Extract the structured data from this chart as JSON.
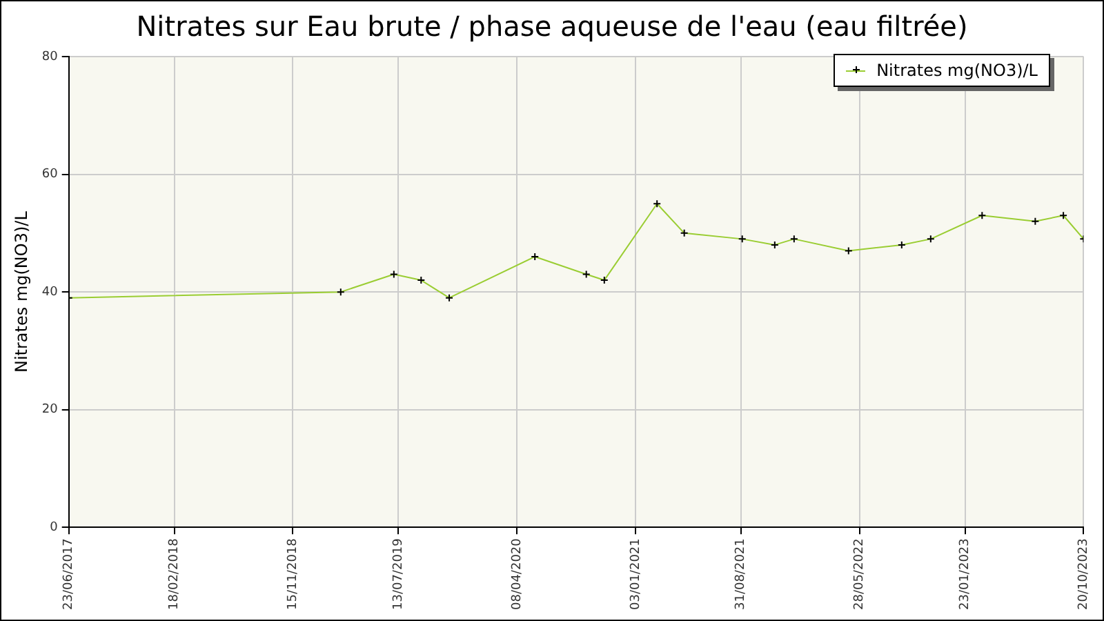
{
  "chart_data": {
    "type": "line",
    "title": "Nitrates sur Eau brute / phase aqueuse de l'eau (eau filtrée)",
    "ylabel": "Nitrates mg(NO3)/L",
    "x": [
      "2017-06-23",
      "2019-03-04",
      "2019-07-03",
      "2019-09-03",
      "2019-11-06",
      "2020-05-19",
      "2020-09-13",
      "2020-10-24",
      "2021-02-21",
      "2021-04-24",
      "2021-09-03",
      "2021-11-16",
      "2021-12-30",
      "2022-05-03",
      "2022-09-01",
      "2022-11-06",
      "2023-03-03",
      "2023-07-02",
      "2023-09-04",
      "2023-10-20"
    ],
    "series": [
      {
        "name": "Nitrates mg(NO3)/L",
        "color": "#9acd32",
        "values": [
          39,
          40,
          43,
          42,
          39,
          46,
          43,
          42,
          55,
          50,
          49,
          48,
          49,
          47,
          48,
          49,
          53,
          52,
          53,
          49
        ]
      }
    ],
    "xlim": [
      "2017-06-23",
      "2023-10-20"
    ],
    "xticks": [
      {
        "value": "2017-06-23",
        "label": "23/06/2017"
      },
      {
        "value": "2018-02-18",
        "label": "18/02/2018"
      },
      {
        "value": "2018-11-15",
        "label": "15/11/2018"
      },
      {
        "value": "2019-07-13",
        "label": "13/07/2019"
      },
      {
        "value": "2020-04-08",
        "label": "08/04/2020"
      },
      {
        "value": "2021-01-03",
        "label": "03/01/2021"
      },
      {
        "value": "2021-08-31",
        "label": "31/08/2021"
      },
      {
        "value": "2022-05-28",
        "label": "28/05/2022"
      },
      {
        "value": "2023-01-23",
        "label": "23/01/2023"
      },
      {
        "value": "2023-10-20",
        "label": "20/10/2023"
      }
    ],
    "ylim": [
      0,
      80
    ],
    "yticks": [
      0,
      20,
      40,
      60,
      80
    ],
    "grid": true,
    "legend": "top right",
    "marker": "cross",
    "line_style": "solid"
  }
}
